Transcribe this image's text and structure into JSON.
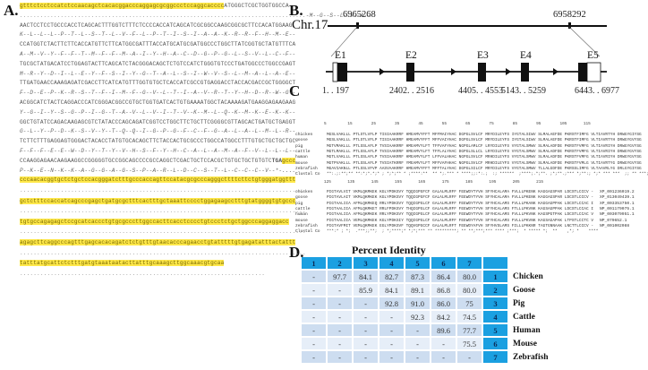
{
  "panels": {
    "a": {
      "label": "A."
    },
    "b": {
      "label": "B."
    },
    "c": {
      "label": "C"
    },
    "d": {
      "label": "D."
    }
  },
  "panel_a": {
    "lines": [
      {
        "type": "utr_start",
        "hl": "gtttctcctccatctccaacagctcacacggacccaggagcgcggccctccaggcacccc",
        "nt": "ATGGGCTCGCTGGTGGCCA"
      },
      {
        "type": "aa",
        "dots": "....................................................................................",
        "aa": "-M--G--S--L--V--A--"
      },
      {
        "type": "nt",
        "text": "AACTCCTCCTGCCCACCTCAGCACTTTGGTCTTTCTCCCCACCATCAGCATCGCGGCCAAGCGGCGCTTCCACATGGAAG"
      },
      {
        "type": "aa",
        "text": "K--L--L--L--P--T--L--S--T--L--V--F--L--P--T--I--S--I--A--A--K--R--R--F--H--M--E--"
      },
      {
        "type": "nt",
        "text": "CCATGGTCTACTTCTTCACCATGTTCTTCATGGCGATTTACCATGCATGCGATGGCCCTGGCTTATCGGTGCTATGTTTCA"
      },
      {
        "type": "aa",
        "text": "A--M--V--Y--F--F--T--M--F--F--M--A--I--Y--H--A--C--D--G--P--G--L--S--V--L--C--F--"
      },
      {
        "type": "nt",
        "text": "TGCGCTATGACATCCTGGAGTACTTCAGCATCTACGGGACAGCTCTGTCCATCTGGGTGTCCCTGATGGCCCTGGCCGAGT"
      },
      {
        "type": "aa",
        "text": "M--R--Y--D--I--L--E--Y--F--S--I--Y--G--T--A--L--S--I--W--V--S--L--M--A--L--A--E--"
      },
      {
        "type": "nt",
        "text": "TTGATGAACCAAAGAGATCGACCTTCATCATGTTTGGTGTGCTCACCATCGCCGTGAGGACCTACCACGACCGCTGGGGCT"
      },
      {
        "type": "aa",
        "text": "F--D--E--P--K--R--S--T--F--I--M--F--G--V--L--T--I--A--V--R--T--Y--H--D--R--W--G--"
      },
      {
        "type": "nt",
        "text": "ACGGCATCTACTCAGGACCCATCGGGACGGCCGTGCTGGTGATCACTGTGAAAATGGCTACAAAAGATGAAGGAGAAGAAG"
      },
      {
        "type": "aa",
        "text": "Y--G--I--Y--S--G--P--I--G--T--A--V--L--V--I--T--V--K--M--L--Q--K--M--K--E--K--K--"
      },
      {
        "type": "nt",
        "text": "GGCTGTATCCAGACAAGAGCGTCTATACCCAGCAGATCGGTCCTGGCTTCTGCTTCGGGGCGTTAGCACTGATGCTGAGGT"
      },
      {
        "type": "aa",
        "text": "G--L--Y--P--D--K--S--V--Y--T--Q--Q--I--G--P--G--F--C--F--G--A--L--A--L--M--L--R--"
      },
      {
        "type": "nt",
        "text": "TCTTCTTTGAGGAGTGGGACTACACCTATGTGCACAGCTTCTACCACTGCGCCCTGGCCATGGCCTTTGTGCTGCTGCTGC"
      },
      {
        "type": "aa",
        "text": "F--F--F--E--E--W--D--Y--T--Y--V--H--S--F--Y--H--C--A--L--A--M--A--F--V--L--L--L--"
      },
      {
        "type": "stop",
        "nt": "CCAAGGAGAACAAGAAGGCCGGGGGTGCCGGCAGCCCCGCCAGGCTCGACTGCTCCACGCTGTGCTGCTGTGTC",
        "stop": "TGA",
        "hl": "gccc"
      },
      {
        "type": "aa",
        "text": "P--K--E--N--K--K--A--G--G--A--G--S--P--A--R--L--D--C--S--T--L--C--C--C--V--*-...."
      },
      {
        "type": "utr",
        "text": "cccaacacggtgctctgctccacgggatctttgcccaccagttccatacgcgcccagggcttttcttctgtgggatggttt"
      },
      {
        "type": "dots",
        "text": "...................................................................................."
      },
      {
        "type": "utr",
        "text": "gctctttccaccatcagcccgagctgatgcgctttcactttgctaaattcccctggagaagcctttgtatggggtgtgccc"
      },
      {
        "type": "dots",
        "text": "...................................................................................."
      },
      {
        "type": "utr",
        "text": "tgtgccagagagctccgcatcaccctgtgcgcccttggccacttcacctcccctgtccctctgctggcccaggaggacc"
      },
      {
        "type": "dots",
        "text": "...................................................................................."
      },
      {
        "type": "utr",
        "text": "agagcttcaggcccagtttgagcacacagatctctgtttgtaacacccagaacctgtatttttgtgagatatttactattt"
      },
      {
        "type": "dots",
        "text": "...................................................................................."
      },
      {
        "type": "utr",
        "text": "tatttatgcattctctttgatgtaaataatacttatttgcaaagcttggcaaacgtgcaa"
      },
      {
        "type": "dots",
        "text": "........................................................................"
      }
    ]
  },
  "panel_b": {
    "chromosome": "Chr.17",
    "coord_left": "6965268",
    "coord_right": "6958292",
    "exons": [
      {
        "label": "E1",
        "range": "1. . 197"
      },
      {
        "label": "E2",
        "range": "2402. . 2516"
      },
      {
        "label": "E3",
        "range": "4405. . 4553"
      },
      {
        "label": "E4",
        "range": "5143. . 5259"
      },
      {
        "label": "E5",
        "range": "6443. . 6977"
      }
    ]
  },
  "panel_c": {
    "ruler1": "5         15        25        35        45        55        65        75        85        95        105       115",
    "ruler2": "125       135       145       155       165       175       185       195       205       215",
    "species": [
      "chicken",
      "goose",
      "pig",
      "cattle",
      "human",
      "mouse",
      "zebrafish",
      "Clustal Co"
    ],
    "block1": [
      "MGSLVAKLLL PTLSTLVFLP TISIAAKRRF HMEAMVYFFT MFFMAIYHAC DGPGLSVLCF MRYDILEYFS IYGTALSIWV SLMALAEFDE PKRSTFIMFG VLTIAVRTYH DRWGYGIYSG",
      "MGSLVAKLLL PTLSTLVFLP TISIAAKRRF HMEAMVYFFT MFFVAIYHAC DGPGLSVLCF MRYDILEYFS IYGTALSIWV SLMALAEFDE PKRSTFIMFG VLTIAVRTYH DRWGYGVYSG",
      "MGTVMAKLLL PTLSSLAFLP TVSIAAKRRF HMEAMVYLFT TFFVAFYHAC NGPGLAMLCF LRYDILEYFS VYGTALSMWV SLMALADFDE PKRSTFVMFG VLTIAVRIYH DRWGYGVYSG",
      "MGTLMAKLLL PTLSSLAFLP TVSIAAKRRF HMEAMVYLFT TFFLALYHAC DGPGLSLLCL LRYDILEYFS VYGTALSMWV SLMALADFDE PKRSTFVMFG VLTIAVRIYH DRWGYGVYSG",
      "MGTLVAKLLL PTLSSLAFLP TVSIAAKRRF HMEAMVYLFT LFFVALHHAC NGPGLSVLCF MRHDILEYFS VYGTALSMWV SLMALADFDE PKRSTFVMFG VLTIAVRIYH DRWGYGVYSG",
      "MGTPVAKLLL PTLSSLAFLP TVSIATKRRF YMEAMVYLFT MFFVAFHHAC NGPGLSVLCF MRHDILEYFS VYGTALSMWV SLMALADFDE PKRSTFVMLG VLTIAVRTYG DRWGYGVYSG",
      "MGAVIAKNLL PTLSSLVFVP AASVAAKRRF HMEAMVYFFT MFFTALYHAC DGPGLSILCF MRYDILEYFS VYGTALSMWV TLLALGDFDE PKRSSLIMFG VLTAAVRLYG DRLGYGIYSG",
      "**:.;:**;** **:*;*.*;* ; *;*;** * ;****:**  ** *;.*** * ****;;:*:.;  :; ******  ;****;.*;**. ;*;**.;*** *;**:; *;* *** ***  ;; ** ***;***"
    ],
    "block2": [
      "PIGTAVLVIT VKMLQKMKEK KGLYPDKSVY TQQIGPGFCF GALALMLRFF FEEWDYTYVH SFYHCALAMA FVLLLPKENK KAGGAGSPAR LDCSTLCCCV -",
      "PIGTAVLAIT VKMLQKMKEK KGLYPDKSVY TQQIGPGFCF GALALMLRFF FEEWDYTYVH SFYHCALAMA FVLLLPKENK KAGGAGSPAR LDCSTLCCCV -",
      "PIGTAALIIA AFMLQKMKEQ RRLYPDKSVY TQQIGPGLCF GALALMLRFF FEEWDYTYVH SFYHCALAMS FVLLLPKANK KAGGAGPPAK LDCSTLCCAC I",
      "PIGTAALIIA AFMLQKMKET RRLFPDKSVY THQIGPGLCF GALALMLRFF FEEWDYTYVH SFYHCALAMS FTLLLPKVNK KAGSAGPPAK LDCSTLCCAC I",
      "PIGTAALIIA AFMLQKMKEK RRLYPDKSVY TQQIGPGLCF GALALMLRFF FEEWDYTYVH SFYHCALAMS FVLLLPKVNK KAGSPGTPAK LDCSTLCCAC V",
      "PIGTAALIIA VEMLQKMKEK KGLYPDKSIY TQQIGPGLCF GALALMLRFF FEEWDYTYVH SFYHCALAMS FVLLLPKVNK KAGSAGAPAK LTPSTLCCTC V",
      "PIGTAVFMIT VEMLQKMKEK EGLYPDKSVF TQQVGPGCCF GALALMLRFT FEEWDYAFVH SFYHVSLAMS FILLLPKKNR TAGTGNNAAK LNCTTLCCCV -",
      "***:* ; *;  .***;;**;  ; *;****;* *;*;*** ** *********; ** **;***;*** **** ;***;  * ***** *;  **    ,*; *    ****"
    ],
    "accessions": [
      "XP_001236019.2",
      "XP_013049439.1",
      "XP_003353750.1",
      "NP_001179075.1",
      "NP_003079951.1",
      "NP_079652.1",
      "NP_001002088"
    ]
  },
  "panel_d": {
    "title": "Percent Identity",
    "header": [
      "1",
      "2",
      "3",
      "4",
      "5",
      "6",
      "7",
      ""
    ],
    "rows": [
      {
        "cells": [
          "-",
          "97.7",
          "84.1",
          "82.7",
          "87.3",
          "86.4",
          "80.0"
        ],
        "idx": "1",
        "species": "Chicken"
      },
      {
        "cells": [
          "-",
          "-",
          "85.9",
          "84.1",
          "89.1",
          "86.8",
          "80.0"
        ],
        "idx": "2",
        "species": "Goose"
      },
      {
        "cells": [
          "-",
          "-",
          "-",
          "92.8",
          "91.0",
          "86.0",
          "75"
        ],
        "idx": "3",
        "species": "Pig"
      },
      {
        "cells": [
          "-",
          "-",
          "-",
          "-",
          "92.3",
          "84.2",
          "74.5"
        ],
        "idx": "4",
        "species": "Cattle"
      },
      {
        "cells": [
          "-",
          "-",
          "-",
          "-",
          "-",
          "89.6",
          "77.7"
        ],
        "idx": "5",
        "species": "Human"
      },
      {
        "cells": [
          "-",
          "-",
          "-",
          "-",
          "-",
          "-",
          "75.5"
        ],
        "idx": "6",
        "species": "Mouse"
      },
      {
        "cells": [
          "-",
          "-",
          "-",
          "-",
          "-",
          "-",
          "-"
        ],
        "idx": "7",
        "species": "Zebrafish"
      }
    ]
  },
  "colors": {
    "highlight": "#ffe84a",
    "table_header": "#1ba0e1",
    "row_dark": "#cdddf0",
    "row_light": "#e6eef8"
  }
}
